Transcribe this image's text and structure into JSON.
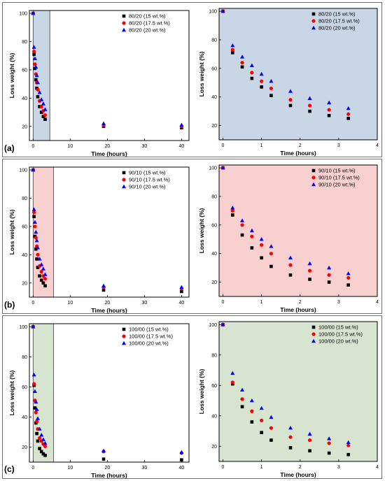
{
  "panels": [
    {
      "label": "(a)",
      "xlabel": "Time (hours)",
      "ylabel": "Loss weight (%)",
      "shade_color": "#c9d6e6",
      "tick_x_left": [
        "0",
        "10",
        "20",
        "30",
        "40"
      ],
      "tick_x_right": [
        "0",
        "1",
        "2",
        "3",
        "4"
      ],
      "tick_y": [
        "20",
        "40",
        "60",
        "80",
        "100"
      ],
      "legend": [
        "80/20 (15 wt.%)",
        "80/20 (17.5 wt.%)",
        "80/20 (20 wt.%)"
      ]
    },
    {
      "label": "(b)",
      "xlabel": "Time (hours)",
      "ylabel": "Loss weight (%)",
      "shade_color": "#f9d0d0",
      "tick_x_left": [
        "0",
        "10",
        "20",
        "30",
        "40"
      ],
      "tick_x_right": [
        "0",
        "1",
        "2",
        "3",
        "4"
      ],
      "tick_y": [
        "20",
        "40",
        "60",
        "80",
        "100"
      ],
      "legend": [
        "90/10 (15 wt.%)",
        "90/10 (17.5 wt.%)",
        "90/10 (20 wt.%)"
      ]
    },
    {
      "label": "(c)",
      "xlabel": "Time (hours)",
      "ylabel": "Loss weight (%)",
      "shade_color": "#d6e4d0",
      "tick_x_left": [
        "0",
        "10",
        "20",
        "30",
        "40"
      ],
      "tick_x_right": [
        "0",
        "1",
        "2",
        "3",
        "4"
      ],
      "tick_y": [
        "20",
        "40",
        "60",
        "80",
        "100"
      ],
      "legend": [
        "100/00 (15 wt.%)",
        "100/00 (17.5 wt.%)",
        "100/00 (20 wt.%)"
      ]
    }
  ],
  "chart_data": [
    {
      "type": "scatter",
      "panel": "(a) left",
      "xlabel": "Time (hours)",
      "ylabel": "Loss weight (%)",
      "xlim": [
        -1,
        42
      ],
      "ylim": [
        10,
        102
      ],
      "shaded_x": [
        0,
        4.5
      ],
      "shade_color": "#c9d6e6",
      "x": [
        0,
        0.25,
        0.5,
        0.75,
        1,
        1.25,
        1.75,
        2.25,
        2.75,
        3.25,
        19,
        40
      ],
      "series": [
        {
          "name": "80/20 (15 wt.%)",
          "marker": "square",
          "color": "#000000",
          "values": [
            100,
            71,
            61,
            53,
            47,
            41,
            34,
            30,
            27,
            25,
            20,
            19
          ]
        },
        {
          "name": "80/20 (17.5 wt.%)",
          "marker": "circle",
          "color": "#ff0000",
          "values": [
            100,
            73,
            64,
            57,
            51,
            46,
            38,
            34,
            31,
            28,
            21,
            20
          ]
        },
        {
          "name": "80/20 (20 wt.%)",
          "marker": "triangle",
          "color": "#0000ff",
          "values": [
            100,
            76,
            68,
            62,
            56,
            51,
            44,
            39,
            36,
            32,
            22,
            21
          ]
        }
      ]
    },
    {
      "type": "scatter",
      "panel": "(a) right",
      "xlabel": "Time (hours)",
      "ylabel": "Loss weight (%)",
      "xlim": [
        -0.1,
        4
      ],
      "ylim": [
        10,
        102
      ],
      "background": "#c9d6e6",
      "x": [
        0,
        0.25,
        0.5,
        0.75,
        1,
        1.25,
        1.75,
        2.25,
        2.75,
        3.25
      ],
      "series": [
        {
          "name": "80/20 (15 wt.%)",
          "marker": "square",
          "color": "#000000",
          "values": [
            100,
            71,
            61,
            53,
            47,
            41,
            34,
            30,
            27,
            25
          ]
        },
        {
          "name": "80/20 (17.5 wt.%)",
          "marker": "circle",
          "color": "#ff0000",
          "values": [
            100,
            73,
            64,
            57,
            51,
            46,
            38,
            34,
            31,
            28
          ]
        },
        {
          "name": "80/20 (20 wt.%)",
          "marker": "triangle",
          "color": "#0000ff",
          "values": [
            100,
            76,
            68,
            62,
            56,
            51,
            44,
            39,
            36,
            32
          ]
        }
      ]
    },
    {
      "type": "scatter",
      "panel": "(b) left",
      "xlabel": "Time (hours)",
      "ylabel": "Loss weight (%)",
      "xlim": [
        -1,
        42
      ],
      "ylim": [
        10,
        102
      ],
      "shaded_x": [
        0,
        5.5
      ],
      "shade_color": "#f9d0d0",
      "x": [
        0,
        0.25,
        0.5,
        0.75,
        1,
        1.25,
        1.75,
        2.25,
        2.75,
        3.25,
        19,
        40
      ],
      "series": [
        {
          "name": "90/10 (15 wt.%)",
          "marker": "square",
          "color": "#000000",
          "values": [
            100,
            67,
            53,
            44,
            37,
            31,
            25,
            22,
            20,
            18,
            15,
            14
          ]
        },
        {
          "name": "90/10 (17.5 wt.%)",
          "marker": "circle",
          "color": "#ff0000",
          "values": [
            100,
            70,
            60,
            52,
            46,
            40,
            32,
            28,
            25,
            23,
            17,
            16
          ]
        },
        {
          "name": "90/10 (20 wt.%)",
          "marker": "triangle",
          "color": "#0000ff",
          "values": [
            100,
            72,
            63,
            56,
            50,
            45,
            37,
            33,
            30,
            26,
            18,
            17
          ]
        }
      ]
    },
    {
      "type": "scatter",
      "panel": "(b) right",
      "xlabel": "Time (hours)",
      "ylabel": "Loss weight (%)",
      "xlim": [
        -0.1,
        4
      ],
      "ylim": [
        10,
        102
      ],
      "background": "#f9d0d0",
      "x": [
        0,
        0.25,
        0.5,
        0.75,
        1,
        1.25,
        1.75,
        2.25,
        2.75,
        3.25
      ],
      "series": [
        {
          "name": "90/10 (15 wt.%)",
          "marker": "square",
          "color": "#000000",
          "values": [
            100,
            67,
            53,
            44,
            37,
            31,
            25,
            22,
            20,
            18
          ]
        },
        {
          "name": "90/10 (17.5 wt.%)",
          "marker": "circle",
          "color": "#ff0000",
          "values": [
            100,
            70,
            60,
            52,
            46,
            40,
            32,
            28,
            25,
            23
          ]
        },
        {
          "name": "90/10 (20 wt.%)",
          "marker": "triangle",
          "color": "#0000ff",
          "values": [
            100,
            72,
            63,
            56,
            50,
            45,
            37,
            33,
            30,
            26
          ]
        }
      ]
    },
    {
      "type": "scatter",
      "panel": "(c) left",
      "xlabel": "Time (hours)",
      "ylabel": "Loss weight (%)",
      "xlim": [
        -1,
        42
      ],
      "ylim": [
        10,
        102
      ],
      "shaded_x": [
        0,
        5.5
      ],
      "shade_color": "#d6e4d0",
      "x": [
        0,
        0.25,
        0.5,
        0.75,
        1,
        1.25,
        1.75,
        2.25,
        2.75,
        3.25,
        19,
        40
      ],
      "series": [
        {
          "name": "100/00 (15 wt.%)",
          "marker": "square",
          "color": "#000000",
          "values": [
            100,
            61,
            46,
            36,
            29,
            24,
            19,
            17,
            15.5,
            14.5,
            12,
            11.5
          ]
        },
        {
          "name": "100/00 (17.5 wt.%)",
          "marker": "circle",
          "color": "#ff0000",
          "values": [
            100,
            62,
            51,
            43,
            37,
            32,
            26,
            24,
            22,
            20.5,
            17,
            16
          ]
        },
        {
          "name": "100/00 (20 wt.%)",
          "marker": "triangle",
          "color": "#0000ff",
          "values": [
            100,
            68,
            57,
            50,
            45,
            39,
            32,
            28,
            25,
            22.5,
            17.5,
            16.5
          ]
        }
      ]
    },
    {
      "type": "scatter",
      "panel": "(c) right",
      "xlabel": "Time (hours)",
      "ylabel": "Loss weight (%)",
      "xlim": [
        -0.1,
        4
      ],
      "ylim": [
        10,
        102
      ],
      "background": "#d6e4d0",
      "x": [
        0,
        0.25,
        0.5,
        0.75,
        1,
        1.25,
        1.75,
        2.25,
        2.75,
        3.25
      ],
      "series": [
        {
          "name": "100/00 (15 wt.%)",
          "marker": "square",
          "color": "#000000",
          "values": [
            100,
            61,
            46,
            36,
            29,
            24,
            19,
            17,
            15.5,
            14.5
          ]
        },
        {
          "name": "100/00 (17.5 wt.%)",
          "marker": "circle",
          "color": "#ff0000",
          "values": [
            100,
            62,
            51,
            43,
            37,
            32,
            26,
            24,
            22,
            20.5
          ]
        },
        {
          "name": "100/00 (20 wt.%)",
          "marker": "triangle",
          "color": "#0000ff",
          "values": [
            100,
            68,
            57,
            50,
            45,
            39,
            32,
            28,
            25,
            22.5
          ]
        }
      ]
    }
  ]
}
